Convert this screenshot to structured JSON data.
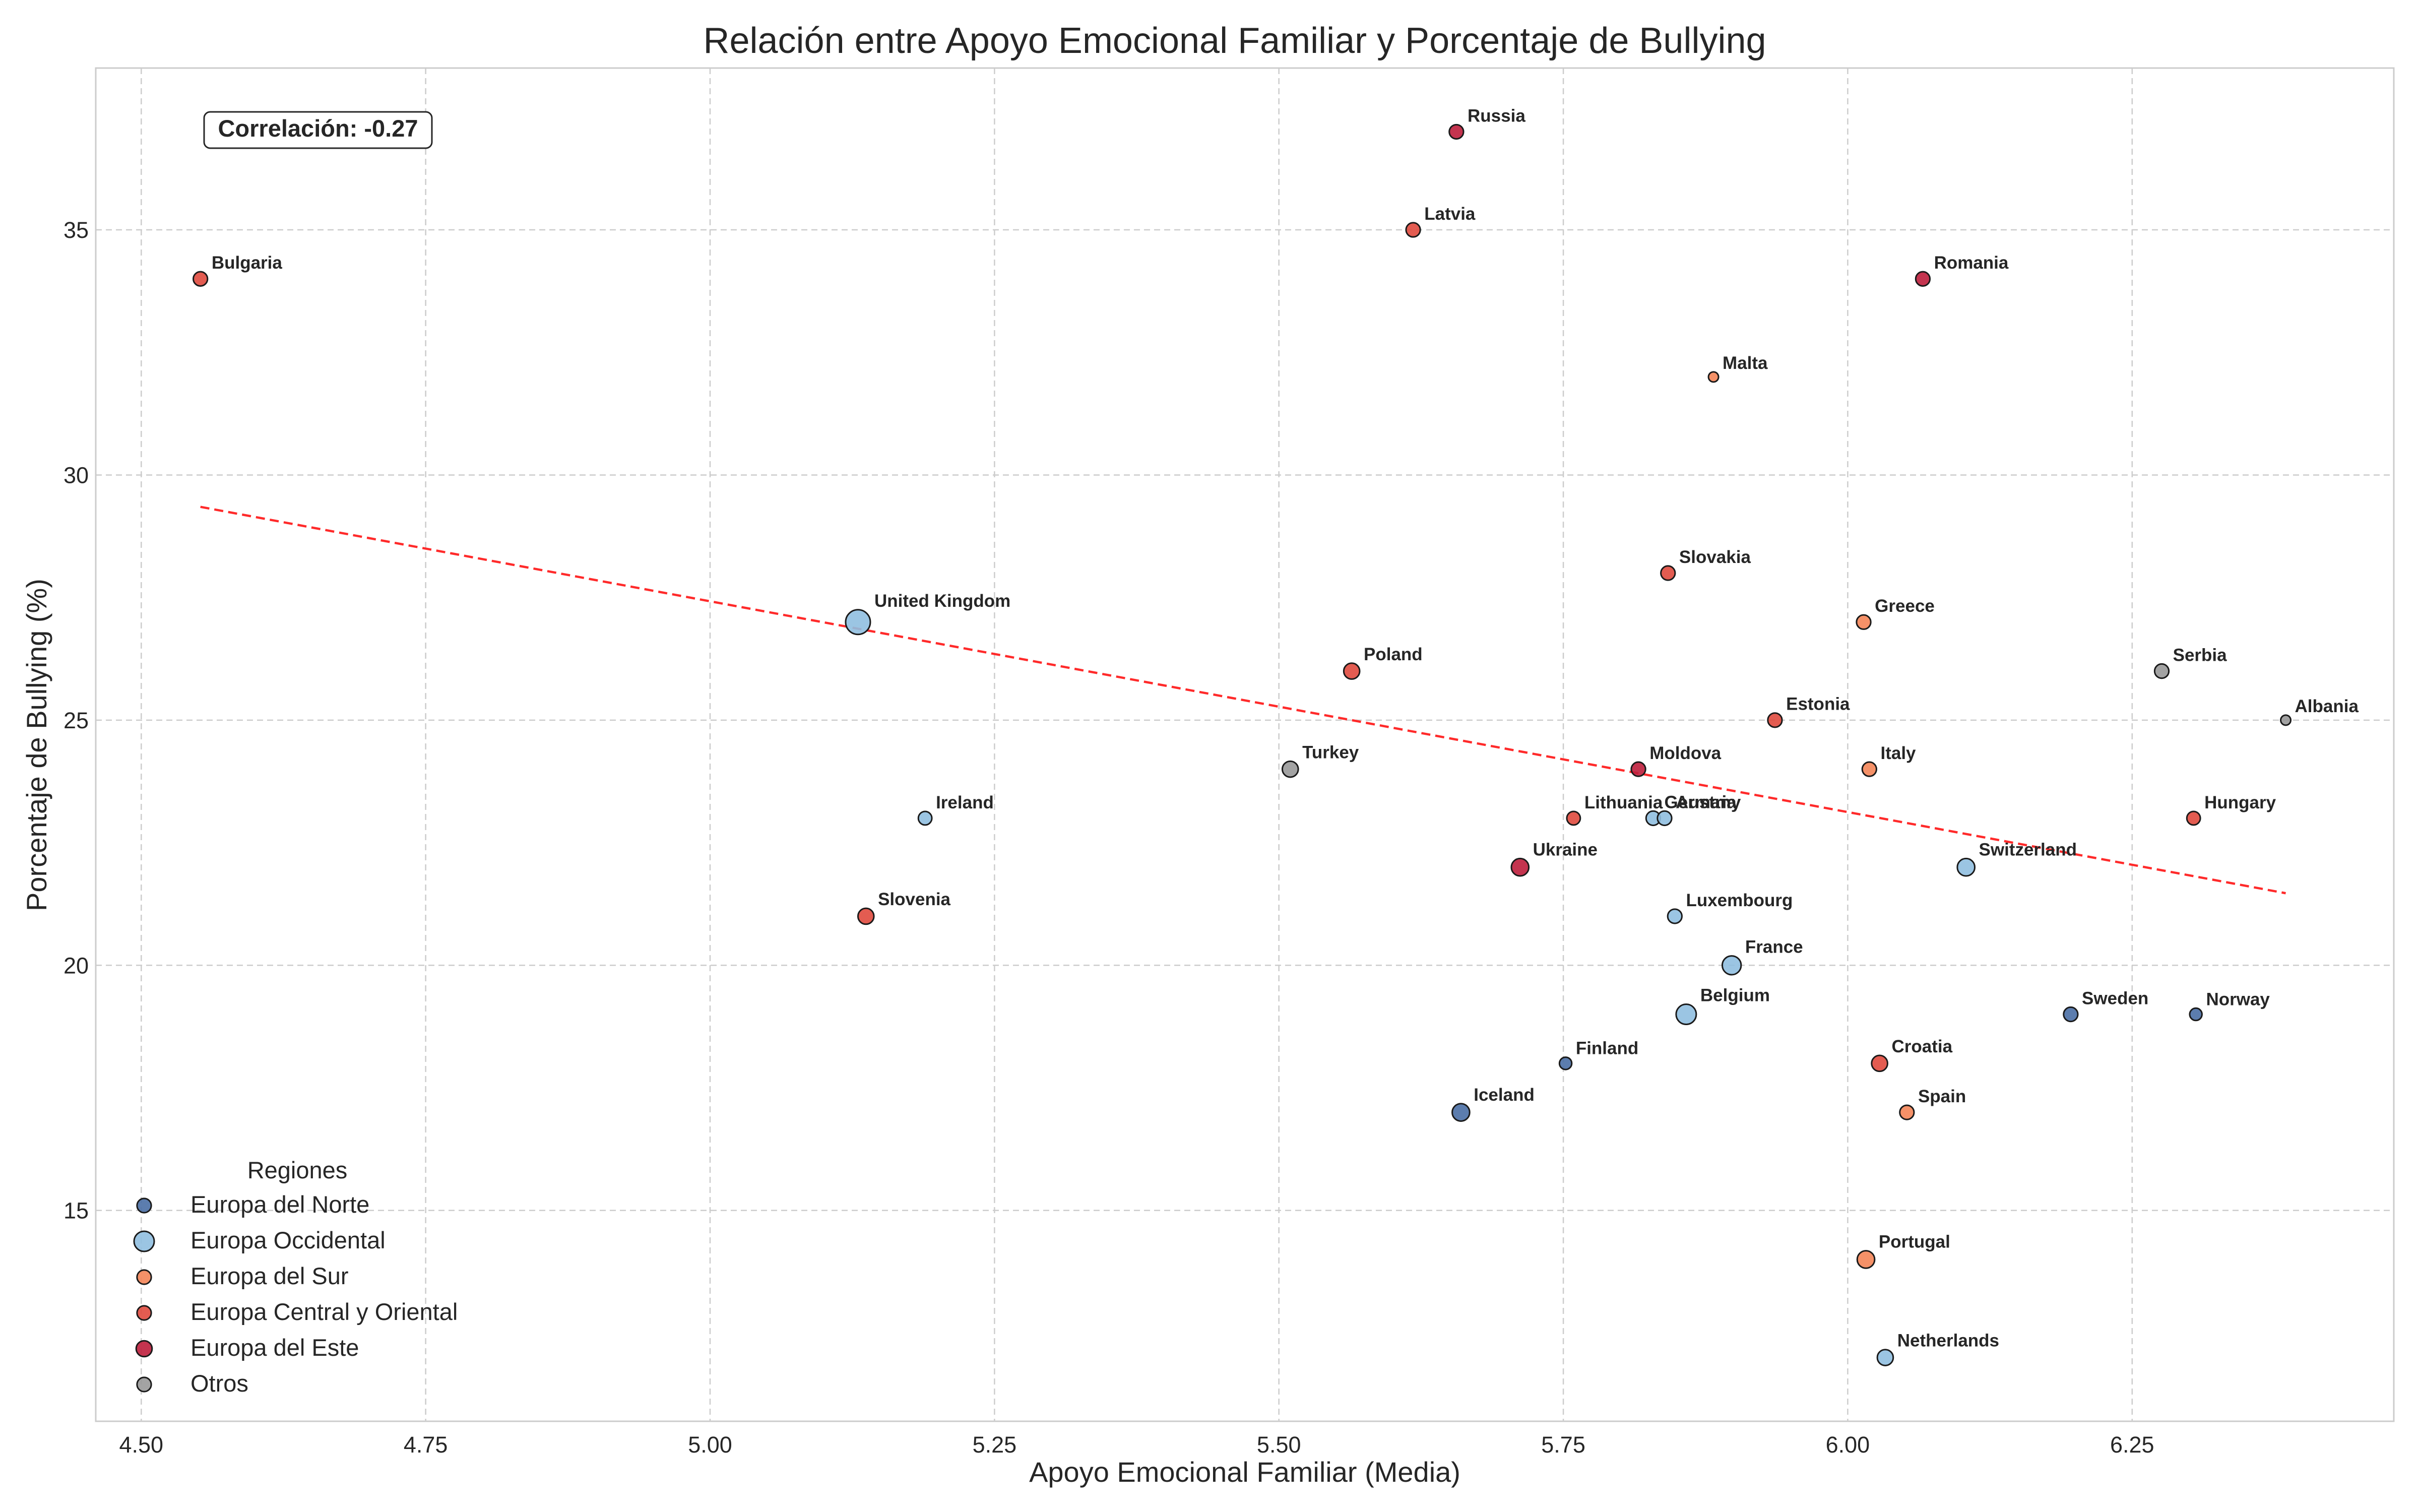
{
  "chart_data": {
    "type": "scatter",
    "title": "Relación entre Apoyo Emocional Familiar y Porcentaje de Bullying",
    "xlabel": "Apoyo Emocional Familiar (Media)",
    "ylabel": "Porcentaje de Bullying (%)",
    "xlim": [
      4.46,
      6.48
    ],
    "ylim": [
      10.7,
      38.3
    ],
    "xticks": [
      4.5,
      4.75,
      5.0,
      5.25,
      5.5,
      5.75,
      6.0,
      6.25
    ],
    "xtick_labels": [
      "4.50",
      "4.75",
      "5.00",
      "5.25",
      "5.50",
      "5.75",
      "6.00",
      "6.25"
    ],
    "yticks": [
      15,
      20,
      25,
      30,
      35
    ],
    "ytick_labels": [
      "15",
      "20",
      "25",
      "30",
      "35"
    ],
    "grid": true,
    "correlation_label": "Correlación: -0.27",
    "trendline": {
      "x": [
        4.552,
        6.385
      ],
      "y": [
        29.35,
        21.47
      ],
      "color": "#ff2a2a"
    },
    "legend": {
      "title": "Regiones",
      "position": "lower-left",
      "entries": [
        {
          "label": "Europa del Norte",
          "color": "#4a6fa5"
        },
        {
          "label": "Europa Occidental",
          "color": "#90bfe0"
        },
        {
          "label": "Europa del Sur",
          "color": "#f48558"
        },
        {
          "label": "Europa Central y Oriental",
          "color": "#e04a3e"
        },
        {
          "label": "Europa del Este",
          "color": "#be1e3c"
        },
        {
          "label": "Otros",
          "color": "#999999"
        }
      ]
    },
    "points": [
      {
        "country": "Bulgaria",
        "x": 4.552,
        "y": 34,
        "region": "Europa Central y Oriental",
        "size": 2
      },
      {
        "country": "Russia",
        "x": 5.656,
        "y": 37,
        "region": "Europa del Este",
        "size": 2
      },
      {
        "country": "Latvia",
        "x": 5.618,
        "y": 35,
        "region": "Europa Central y Oriental",
        "size": 2
      },
      {
        "country": "Romania",
        "x": 6.066,
        "y": 34,
        "region": "Europa del Este",
        "size": 2
      },
      {
        "country": "Malta",
        "x": 5.882,
        "y": 32,
        "region": "Europa del Sur",
        "size": 1
      },
      {
        "country": "Slovakia",
        "x": 5.842,
        "y": 28,
        "region": "Europa Central y Oriental",
        "size": 2
      },
      {
        "country": "Greece",
        "x": 6.014,
        "y": 27,
        "region": "Europa del Sur",
        "size": 2
      },
      {
        "country": "United Kingdom",
        "x": 5.13,
        "y": 27,
        "region": "Europa Occidental",
        "size": 6
      },
      {
        "country": "Poland",
        "x": 5.564,
        "y": 26,
        "region": "Europa Central y Oriental",
        "size": 2.5
      },
      {
        "country": "Serbia",
        "x": 6.276,
        "y": 26,
        "region": "Otros",
        "size": 2
      },
      {
        "country": "Albania",
        "x": 6.385,
        "y": 25,
        "region": "Otros",
        "size": 1
      },
      {
        "country": "Estonia",
        "x": 5.936,
        "y": 25,
        "region": "Europa Central y Oriental",
        "size": 2
      },
      {
        "country": "Turkey",
        "x": 5.51,
        "y": 24,
        "region": "Otros",
        "size": 2.5
      },
      {
        "country": "Moldova",
        "x": 5.816,
        "y": 24,
        "region": "Europa del Este",
        "size": 2
      },
      {
        "country": "Italy",
        "x": 6.019,
        "y": 24,
        "region": "Europa del Sur",
        "size": 2
      },
      {
        "country": "Ireland",
        "x": 5.189,
        "y": 23,
        "region": "Europa Occidental",
        "size": 1.8
      },
      {
        "country": "Lithuania",
        "x": 5.759,
        "y": 23,
        "region": "Europa Central y Oriental",
        "size": 1.8
      },
      {
        "country": "Germany",
        "x": 5.829,
        "y": 23,
        "region": "Europa Occidental",
        "size": 2
      },
      {
        "country": "Austria",
        "x": 5.839,
        "y": 23,
        "region": "Europa Occidental",
        "size": 2
      },
      {
        "country": "Hungary",
        "x": 6.304,
        "y": 23,
        "region": "Europa Central y Oriental",
        "size": 1.8
      },
      {
        "country": "Ukraine",
        "x": 5.712,
        "y": 22,
        "region": "Europa del Este",
        "size": 3
      },
      {
        "country": "Switzerland",
        "x": 6.104,
        "y": 22,
        "region": "Europa Occidental",
        "size": 3
      },
      {
        "country": "Slovenia",
        "x": 5.137,
        "y": 21,
        "region": "Europa Central y Oriental",
        "size": 2.5
      },
      {
        "country": "Luxembourg",
        "x": 5.848,
        "y": 21,
        "region": "Europa Occidental",
        "size": 2
      },
      {
        "country": "France",
        "x": 5.898,
        "y": 20,
        "region": "Europa Occidental",
        "size": 3.5
      },
      {
        "country": "Belgium",
        "x": 5.858,
        "y": 19,
        "region": "Europa Occidental",
        "size": 4
      },
      {
        "country": "Sweden",
        "x": 6.196,
        "y": 19,
        "region": "Europa del Norte",
        "size": 2
      },
      {
        "country": "Norway",
        "x": 6.306,
        "y": 19,
        "region": "Europa del Norte",
        "size": 1.5
      },
      {
        "country": "Finland",
        "x": 5.752,
        "y": 18,
        "region": "Europa del Norte",
        "size": 1.5
      },
      {
        "country": "Croatia",
        "x": 6.028,
        "y": 18,
        "region": "Europa Central y Oriental",
        "size": 2.5
      },
      {
        "country": "Iceland",
        "x": 5.66,
        "y": 17,
        "region": "Europa del Norte",
        "size": 3
      },
      {
        "country": "Spain",
        "x": 6.052,
        "y": 17,
        "region": "Europa del Sur",
        "size": 2
      },
      {
        "country": "Portugal",
        "x": 6.016,
        "y": 14,
        "region": "Europa del Sur",
        "size": 3
      },
      {
        "country": "Netherlands",
        "x": 6.033,
        "y": 12,
        "region": "Europa Occidental",
        "size": 2.5
      }
    ]
  }
}
